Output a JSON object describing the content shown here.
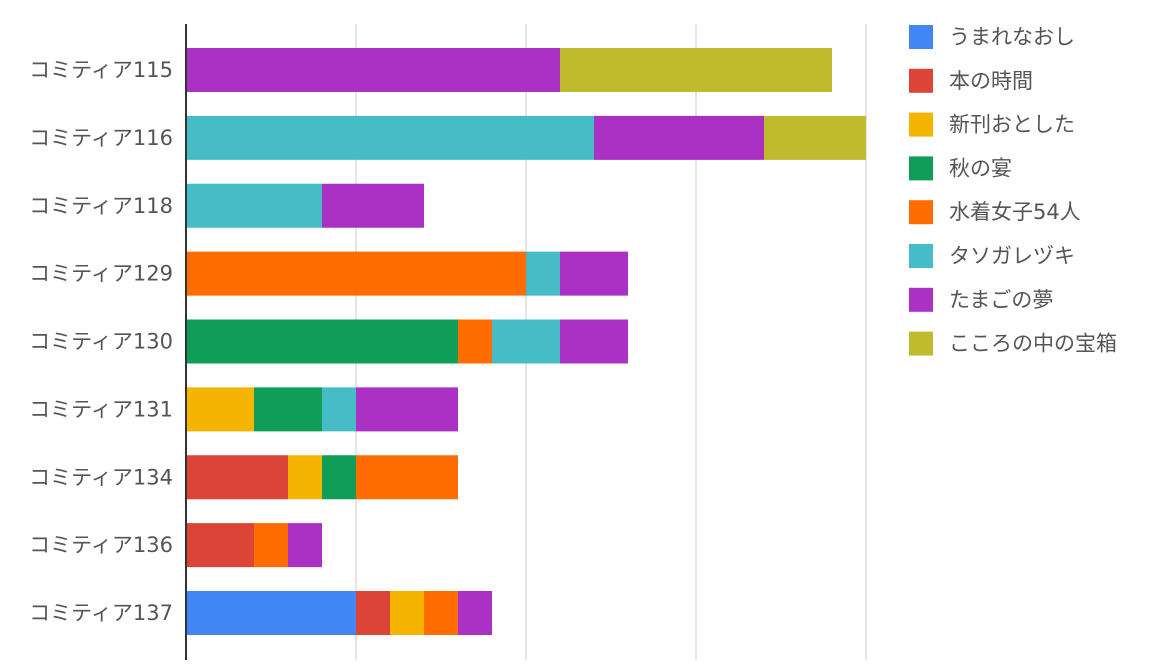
{
  "chart_data": {
    "type": "bar",
    "orientation": "horizontal",
    "stacked": true,
    "title": "",
    "xlabel": "",
    "ylabel": "",
    "xlim": [
      0,
      20
    ],
    "grid": true,
    "legend_position": "right",
    "categories": [
      "コミティア115",
      "コミティア116",
      "コミティア118",
      "コミティア129",
      "コミティア130",
      "コミティア131",
      "コミティア134",
      "コミティア136",
      "コミティア137"
    ],
    "series": [
      {
        "name": "うまれなおし",
        "color": "#4285f4",
        "values": [
          0,
          0,
          0,
          0,
          0,
          0,
          0,
          0,
          5
        ]
      },
      {
        "name": "本の時間",
        "color": "#db4437",
        "values": [
          0,
          0,
          0,
          0,
          0,
          0,
          3,
          2,
          1
        ]
      },
      {
        "name": "新刊おとした",
        "color": "#f4b400",
        "values": [
          0,
          0,
          0,
          0,
          0,
          2,
          1,
          0,
          1
        ]
      },
      {
        "name": "秋の宴",
        "color": "#0f9d58",
        "values": [
          0,
          0,
          0,
          0,
          8,
          2,
          1,
          0,
          0
        ]
      },
      {
        "name": "水着女子54人",
        "color": "#ff6d01",
        "values": [
          0,
          0,
          0,
          10,
          1,
          0,
          3,
          1,
          1
        ]
      },
      {
        "name": "タソガレヅキ",
        "color": "#46bdc6",
        "values": [
          0,
          12,
          4,
          1,
          2,
          1,
          0,
          0,
          0
        ]
      },
      {
        "name": "たまごの夢",
        "color": "#ab30c4",
        "values": [
          11,
          5,
          3,
          2,
          2,
          3,
          0,
          1,
          1
        ]
      },
      {
        "name": "こころの中の宝箱",
        "color": "#c0ba2f",
        "values": [
          8,
          3,
          0,
          0,
          0,
          0,
          0,
          0,
          0
        ]
      }
    ]
  }
}
